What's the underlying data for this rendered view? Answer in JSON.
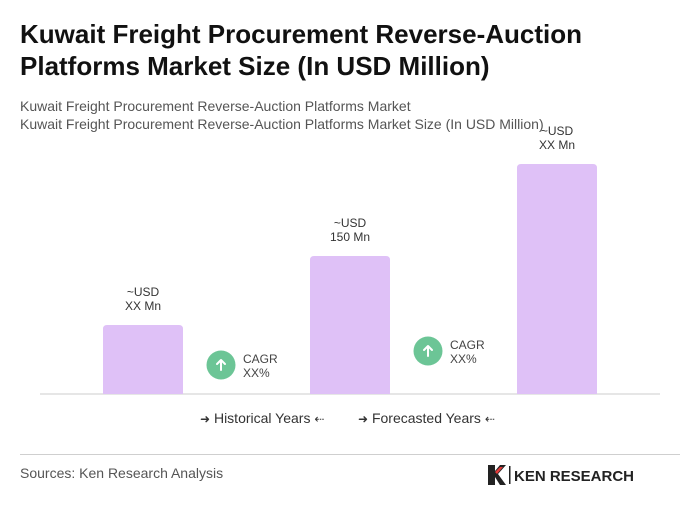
{
  "header": {
    "title": "Kuwait Freight Procurement Reverse-Auction Platforms Market Size (In USD Million)",
    "subtitle_1": "Kuwait Freight Procurement Reverse-Auction Platforms Market",
    "subtitle_2": "Kuwait Freight Procurement Reverse-Auction Platforms Market Size (In USD Million)"
  },
  "chart_data": {
    "type": "bar",
    "categories": [
      "",
      "",
      ""
    ],
    "values": [
      30,
      60,
      100
    ],
    "value_labels": [
      [
        "~USD",
        "XX Mn"
      ],
      [
        "~USD",
        "150 Mn"
      ],
      [
        "~USD",
        "XX Mn"
      ]
    ],
    "cagr": [
      {
        "line1": "CAGR",
        "line2": "XX%"
      },
      {
        "line1": "CAGR",
        "line2": "XX%"
      }
    ],
    "bar_color": "#dfc1f7",
    "cagr_color": "#6cc596",
    "grid": false,
    "legend": [
      "Historical Years",
      "Forecasted Years"
    ],
    "legend_position": "bottom"
  },
  "footer": {
    "sources": "Sources: Ken Research Analysis",
    "logo_text": "KEN RESEARCH"
  }
}
